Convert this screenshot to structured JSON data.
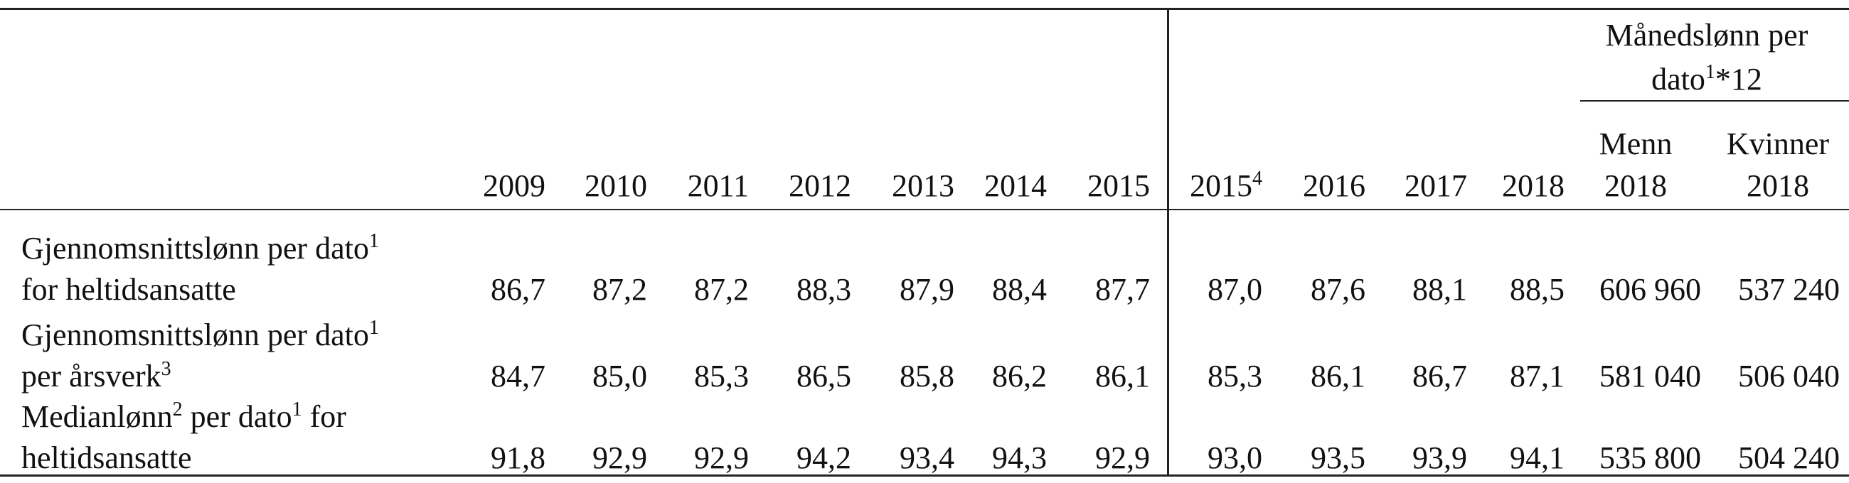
{
  "table": {
    "group_header": {
      "lines": [
        [
          "Månedslønn per"
        ],
        [
          "dato",
          {
            "sup": "1"
          },
          "*12"
        ]
      ]
    },
    "columns": [
      [
        [
          "2009"
        ]
      ],
      [
        [
          "2010"
        ]
      ],
      [
        [
          "2011"
        ]
      ],
      [
        [
          "2012"
        ]
      ],
      [
        [
          "2013"
        ]
      ],
      [
        [
          "2014"
        ]
      ],
      [
        [
          "2015"
        ]
      ],
      [
        [
          "2015",
          {
            "sup": "4"
          }
        ]
      ],
      [
        [
          "2016"
        ]
      ],
      [
        [
          "2017"
        ]
      ],
      [
        [
          "2018"
        ]
      ],
      [
        [
          "Menn"
        ],
        [
          "2018"
        ]
      ],
      [
        [
          "Kvinner"
        ],
        [
          "2018"
        ]
      ]
    ],
    "rows": [
      {
        "label": [
          [
            "Gjennomsnittslønn per dato",
            {
              "sup": "1"
            }
          ],
          [
            "for heltidsansatte"
          ]
        ],
        "values": [
          "86,7",
          "87,2",
          "87,2",
          "88,3",
          "87,9",
          "88,4",
          "87,7",
          "87,0",
          "87,6",
          "88,1",
          "88,5",
          "606 960",
          "537 240"
        ]
      },
      {
        "label": [
          [
            "Gjennomsnittslønn per dato",
            {
              "sup": "1"
            }
          ],
          [
            "per årsverk",
            {
              "sup": "3"
            }
          ]
        ],
        "values": [
          "84,7",
          "85,0",
          "85,3",
          "86,5",
          "85,8",
          "86,2",
          "86,1",
          "85,3",
          "86,1",
          "86,7",
          "87,1",
          "581 040",
          "506 040"
        ]
      },
      {
        "label": [
          [
            "Medianlønn",
            {
              "sup": "2"
            },
            " per dato",
            {
              "sup": "1"
            },
            " for"
          ],
          [
            "heltidsansatte"
          ]
        ],
        "values": [
          "91,8",
          "92,9",
          "92,9",
          "94,2",
          "93,4",
          "94,3",
          "92,9",
          "93,0",
          "93,5",
          "93,9",
          "94,1",
          "535 800",
          "504 240"
        ]
      }
    ]
  }
}
